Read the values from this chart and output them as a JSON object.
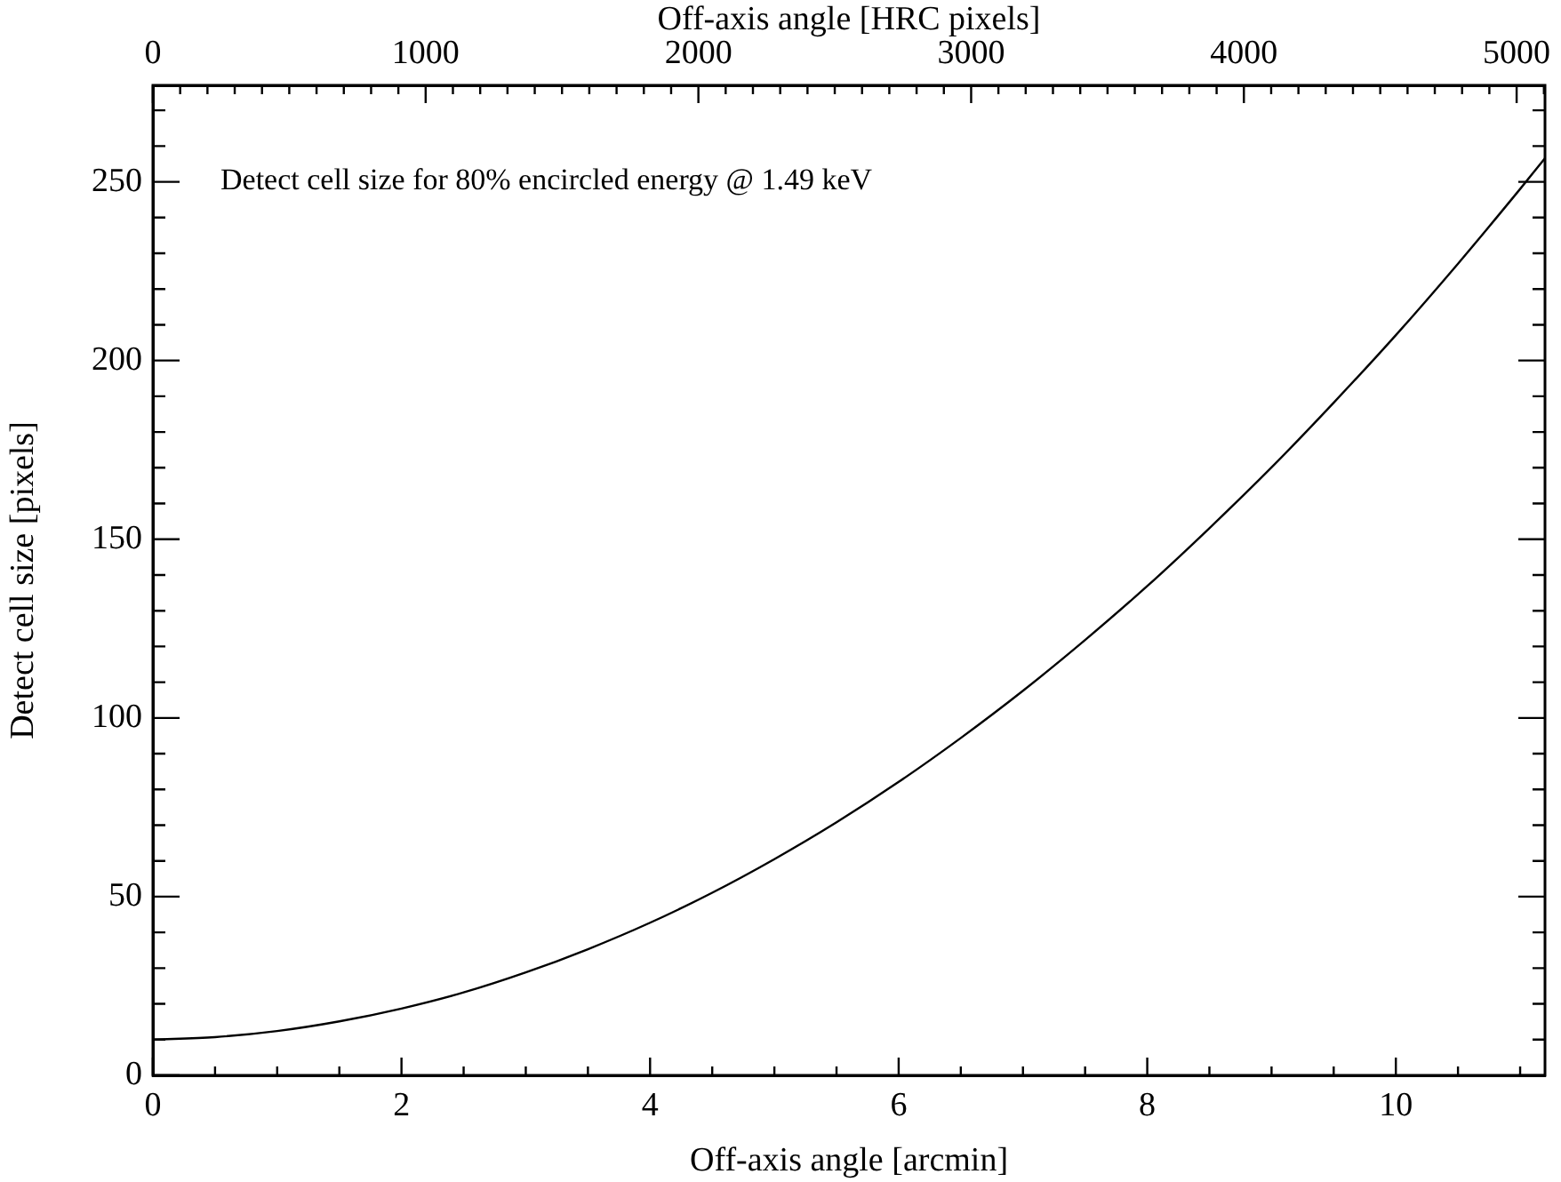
{
  "chart_data": {
    "type": "line",
    "xlabel": "Off-axis angle [arcmin]",
    "x2label": "Off-axis angle [HRC pixels]",
    "ylabel": "Detect cell size [pixels]",
    "annotations": [
      "Detect cell size for 80% encircled energy @ 1.49 keV"
    ],
    "x": [
      0,
      0.5,
      1,
      1.5,
      2,
      2.5,
      3,
      3.5,
      4,
      4.5,
      5,
      5.5,
      6,
      6.5,
      7,
      7.5,
      8,
      8.5,
      9,
      9.5,
      10,
      10.5,
      11,
      11.2
    ],
    "series": [
      {
        "color": "#000000",
        "values": [
          10,
          10.7,
          12.4,
          15.1,
          18.7,
          23.2,
          28.8,
          35.3,
          42.7,
          51.1,
          60.5,
          70.8,
          82.1,
          94.4,
          107.6,
          121.8,
          136.9,
          153.1,
          170.1,
          188.2,
          207.1,
          227.1,
          248,
          256.6
        ]
      }
    ],
    "xlim": [
      0,
      11.2
    ],
    "xticks": [
      0,
      {
        "value": 0.5,
        "label": null
      },
      {
        "value": 1,
        "label": null
      },
      {
        "value": 1.5,
        "label": null
      },
      2,
      {
        "value": 2.5,
        "label": null
      },
      {
        "value": 3,
        "label": null
      },
      {
        "value": 3.5,
        "label": null
      },
      4,
      {
        "value": 4.5,
        "label": null
      },
      {
        "value": 5,
        "label": null
      },
      {
        "value": 5.5,
        "label": null
      },
      6,
      {
        "value": 6.5,
        "label": null
      },
      {
        "value": 7,
        "label": null
      },
      {
        "value": 7.5,
        "label": null
      },
      8,
      {
        "value": 8.5,
        "label": null
      },
      {
        "value": 9,
        "label": null
      },
      {
        "value": 9.5,
        "label": null
      },
      10,
      {
        "value": 10.5,
        "label": null
      },
      {
        "value": 11,
        "label": null
      }
    ],
    "x2lim": [
      0,
      5104
    ],
    "x2ticks": [
      0,
      {
        "value": 100,
        "label": null
      },
      {
        "value": 200,
        "label": null
      },
      {
        "value": 300,
        "label": null
      },
      {
        "value": 400,
        "label": null
      },
      {
        "value": 500,
        "label": null
      },
      {
        "value": 600,
        "label": null
      },
      {
        "value": 700,
        "label": null
      },
      {
        "value": 800,
        "label": null
      },
      {
        "value": 900,
        "label": null
      },
      1000,
      {
        "value": 1100,
        "label": null
      },
      {
        "value": 1200,
        "label": null
      },
      {
        "value": 1300,
        "label": null
      },
      {
        "value": 1400,
        "label": null
      },
      {
        "value": 1500,
        "label": null
      },
      {
        "value": 1600,
        "label": null
      },
      {
        "value": 1700,
        "label": null
      },
      {
        "value": 1800,
        "label": null
      },
      {
        "value": 1900,
        "label": null
      },
      2000,
      {
        "value": 2100,
        "label": null
      },
      {
        "value": 2200,
        "label": null
      },
      {
        "value": 2300,
        "label": null
      },
      {
        "value": 2400,
        "label": null
      },
      {
        "value": 2500,
        "label": null
      },
      {
        "value": 2600,
        "label": null
      },
      {
        "value": 2700,
        "label": null
      },
      {
        "value": 2800,
        "label": null
      },
      {
        "value": 2900,
        "label": null
      },
      3000,
      {
        "value": 3100,
        "label": null
      },
      {
        "value": 3200,
        "label": null
      },
      {
        "value": 3300,
        "label": null
      },
      {
        "value": 3400,
        "label": null
      },
      {
        "value": 3500,
        "label": null
      },
      {
        "value": 3600,
        "label": null
      },
      {
        "value": 3700,
        "label": null
      },
      {
        "value": 3800,
        "label": null
      },
      {
        "value": 3900,
        "label": null
      },
      4000,
      {
        "value": 4100,
        "label": null
      },
      {
        "value": 4200,
        "label": null
      },
      {
        "value": 4300,
        "label": null
      },
      {
        "value": 4400,
        "label": null
      },
      {
        "value": 4500,
        "label": null
      },
      {
        "value": 4600,
        "label": null
      },
      {
        "value": 4700,
        "label": null
      },
      {
        "value": 4800,
        "label": null
      },
      {
        "value": 4900,
        "label": null
      },
      5000,
      {
        "value": 5100,
        "label": null
      }
    ],
    "ylim": [
      0,
      277
    ],
    "yticks": [
      0,
      {
        "value": 10,
        "label": null
      },
      {
        "value": 20,
        "label": null
      },
      {
        "value": 30,
        "label": null
      },
      {
        "value": 40,
        "label": null
      },
      50,
      {
        "value": 60,
        "label": null
      },
      {
        "value": 70,
        "label": null
      },
      {
        "value": 80,
        "label": null
      },
      {
        "value": 90,
        "label": null
      },
      100,
      {
        "value": 110,
        "label": null
      },
      {
        "value": 120,
        "label": null
      },
      {
        "value": 130,
        "label": null
      },
      {
        "value": 140,
        "label": null
      },
      150,
      {
        "value": 160,
        "label": null
      },
      {
        "value": 170,
        "label": null
      },
      {
        "value": 180,
        "label": null
      },
      {
        "value": 190,
        "label": null
      },
      200,
      {
        "value": 210,
        "label": null
      },
      {
        "value": 220,
        "label": null
      },
      {
        "value": 230,
        "label": null
      },
      {
        "value": 240,
        "label": null
      },
      250,
      {
        "value": 260,
        "label": null
      },
      {
        "value": 270,
        "label": null
      }
    ],
    "marker": "none",
    "line_style": "solid",
    "grid": false,
    "legend": false
  }
}
